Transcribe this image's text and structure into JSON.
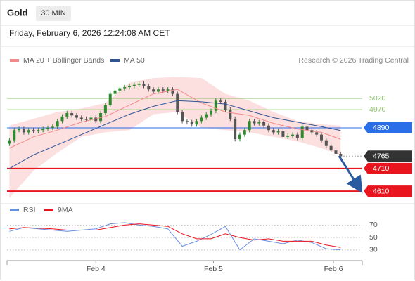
{
  "header": {
    "symbol": "Gold",
    "interval": "30 MIN",
    "timestamp": "Friday, February 6, 2026 12:24:08 AM CET"
  },
  "chart_data": [
    {
      "type": "candlestick",
      "credit": "Research © 2026 Trading Central",
      "x": [
        0,
        1,
        2,
        3,
        4,
        5,
        6,
        7,
        8,
        9,
        10,
        11,
        12,
        13,
        14,
        15,
        16,
        17,
        18,
        19,
        20,
        21,
        22,
        23,
        24,
        25,
        26,
        27,
        28,
        29,
        30,
        31,
        32,
        33,
        34,
        35,
        36,
        37,
        38,
        39,
        40,
        41,
        42,
        43,
        44,
        45,
        46,
        47,
        48,
        49,
        50,
        51,
        52,
        53,
        54,
        55,
        56,
        57,
        58,
        59,
        60,
        61,
        62,
        63,
        64,
        65,
        66,
        67,
        68,
        69
      ],
      "open": [
        4820,
        4835,
        4880,
        4885,
        4870,
        4880,
        4875,
        4880,
        4885,
        4890,
        4895,
        4920,
        4940,
        4955,
        4945,
        4935,
        4930,
        4925,
        4935,
        4920,
        4955,
        4990,
        5040,
        5055,
        5065,
        5070,
        5075,
        5080,
        5085,
        5075,
        5060,
        5050,
        5060,
        5055,
        5060,
        5040,
        4960,
        4920,
        4915,
        4905,
        4920,
        4935,
        4950,
        4965,
        5010,
        5005,
        4970,
        4930,
        4840,
        4860,
        4880,
        4920,
        4910,
        4915,
        4900,
        4880,
        4870,
        4875,
        4850,
        4855,
        4860,
        4845,
        4895,
        4880,
        4870,
        4860,
        4835,
        4810,
        4790,
        4775
      ],
      "high": [
        4845,
        4890,
        4895,
        4895,
        4890,
        4890,
        4890,
        4895,
        4900,
        4905,
        4930,
        4950,
        4965,
        4965,
        4955,
        4945,
        4940,
        4945,
        4945,
        4965,
        5000,
        5050,
        5065,
        5075,
        5080,
        5085,
        5090,
        5095,
        5095,
        5085,
        5070,
        5070,
        5070,
        5070,
        5070,
        5050,
        4970,
        4930,
        4925,
        4930,
        4945,
        4960,
        4975,
        5020,
        5020,
        5015,
        4980,
        4940,
        4870,
        4890,
        4930,
        4930,
        4925,
        4925,
        4910,
        4890,
        4885,
        4885,
        4865,
        4870,
        4870,
        4905,
        4905,
        4890,
        4880,
        4870,
        4845,
        4820,
        4800,
        4785
      ],
      "low": [
        4810,
        4825,
        4870,
        4860,
        4860,
        4865,
        4865,
        4870,
        4875,
        4880,
        4885,
        4910,
        4930,
        4935,
        4925,
        4920,
        4915,
        4915,
        4910,
        4910,
        4945,
        4980,
        5030,
        5045,
        5055,
        5060,
        5065,
        5070,
        5065,
        5050,
        5040,
        5040,
        5045,
        5045,
        5030,
        4950,
        4910,
        4905,
        4895,
        4895,
        4910,
        4925,
        4940,
        4955,
        4995,
        4960,
        4920,
        4830,
        4830,
        4850,
        4870,
        4900,
        4900,
        4890,
        4870,
        4860,
        4860,
        4840,
        4840,
        4845,
        4835,
        4835,
        4870,
        4860,
        4850,
        4825,
        4800,
        4780,
        4765,
        4755
      ],
      "close": [
        4835,
        4880,
        4885,
        4870,
        4880,
        4875,
        4880,
        4885,
        4890,
        4895,
        4920,
        4940,
        4955,
        4945,
        4935,
        4930,
        4925,
        4935,
        4920,
        4955,
        4990,
        5040,
        5055,
        5065,
        5070,
        5075,
        5080,
        5085,
        5075,
        5060,
        5050,
        5060,
        5055,
        5060,
        5040,
        4960,
        4920,
        4915,
        4905,
        4920,
        4935,
        4950,
        4965,
        5010,
        5005,
        4970,
        4930,
        4840,
        4860,
        4880,
        4920,
        4910,
        4915,
        4900,
        4880,
        4870,
        4875,
        4850,
        4855,
        4860,
        4845,
        4895,
        4880,
        4870,
        4860,
        4835,
        4810,
        4790,
        4775,
        4765
      ],
      "up_color": "#2f8a2f",
      "down_color": "#555555",
      "series": [
        {
          "name": "MA 20 + Bollinger Bands",
          "color": "#f08a8a",
          "band_color": "#fbd2d2",
          "x": [
            0,
            5,
            10,
            15,
            20,
            25,
            30,
            35,
            40,
            45,
            50,
            55,
            60,
            65,
            69
          ],
          "values": [
            4800,
            4850,
            4880,
            4915,
            4940,
            4990,
            5040,
            5060,
            5000,
            4960,
            4945,
            4910,
            4885,
            4870,
            4840
          ],
          "upper": [
            4900,
            4930,
            4960,
            4975,
            5000,
            5090,
            5110,
            5115,
            5110,
            5040,
            5010,
            4960,
            4920,
            4905,
            4900
          ],
          "lower": [
            4580,
            4700,
            4780,
            4850,
            4870,
            4880,
            4950,
            4960,
            4890,
            4880,
            4870,
            4850,
            4830,
            4800,
            4770
          ]
        },
        {
          "name": "MA 50",
          "color": "#2f5597",
          "x": [
            0,
            5,
            10,
            15,
            20,
            25,
            30,
            35,
            40,
            45,
            50,
            55,
            60,
            65,
            69
          ],
          "values": [
            4710,
            4770,
            4815,
            4860,
            4905,
            4950,
            4985,
            5010,
            5005,
            4995,
            4965,
            4935,
            4915,
            4895,
            4878
          ]
        }
      ],
      "levels": [
        {
          "value": 5020,
          "color": "#8cc665",
          "box": false
        },
        {
          "value": 4970,
          "color": "#8cc665",
          "box": false
        },
        {
          "value": 4890,
          "color": "#2a6ee8",
          "box": true
        },
        {
          "value": 4765,
          "color": "#333333",
          "box": true,
          "dotted": true
        },
        {
          "value": 4710,
          "color": "#e8141e",
          "box": true
        },
        {
          "value": 4610,
          "color": "#e8141e",
          "box": true
        }
      ],
      "xlim": [
        -0.5,
        73.5
      ],
      "ylim": [
        4570,
        5160
      ]
    },
    {
      "type": "line",
      "x": [
        0,
        3,
        6,
        9,
        12,
        15,
        18,
        21,
        24,
        27,
        30,
        33,
        36,
        39,
        42,
        45,
        48,
        51,
        54,
        57,
        60,
        63,
        66,
        69
      ],
      "series": [
        {
          "name": "RSI",
          "color": "#6a8de0",
          "values": [
            60,
            66,
            64,
            62,
            60,
            62,
            64,
            72,
            74,
            70,
            68,
            64,
            36,
            44,
            55,
            68,
            30,
            48,
            44,
            40,
            46,
            42,
            32,
            30
          ]
        },
        {
          "name": "9MA",
          "color": "#e8141e",
          "values": [
            64,
            66,
            65,
            64,
            62,
            62,
            62,
            66,
            70,
            72,
            70,
            68,
            56,
            48,
            48,
            56,
            50,
            46,
            48,
            44,
            44,
            44,
            38,
            34
          ]
        }
      ],
      "xlim": [
        -0.5,
        73.5
      ],
      "ylim": [
        14,
        84
      ],
      "yticks": [
        30,
        50,
        70
      ],
      "grid": true,
      "xticks": [
        {
          "value": 18,
          "label": "Feb 4"
        },
        {
          "value": 42.5,
          "label": "Feb 5"
        },
        {
          "value": 67.5,
          "label": "Feb 6"
        }
      ]
    }
  ]
}
